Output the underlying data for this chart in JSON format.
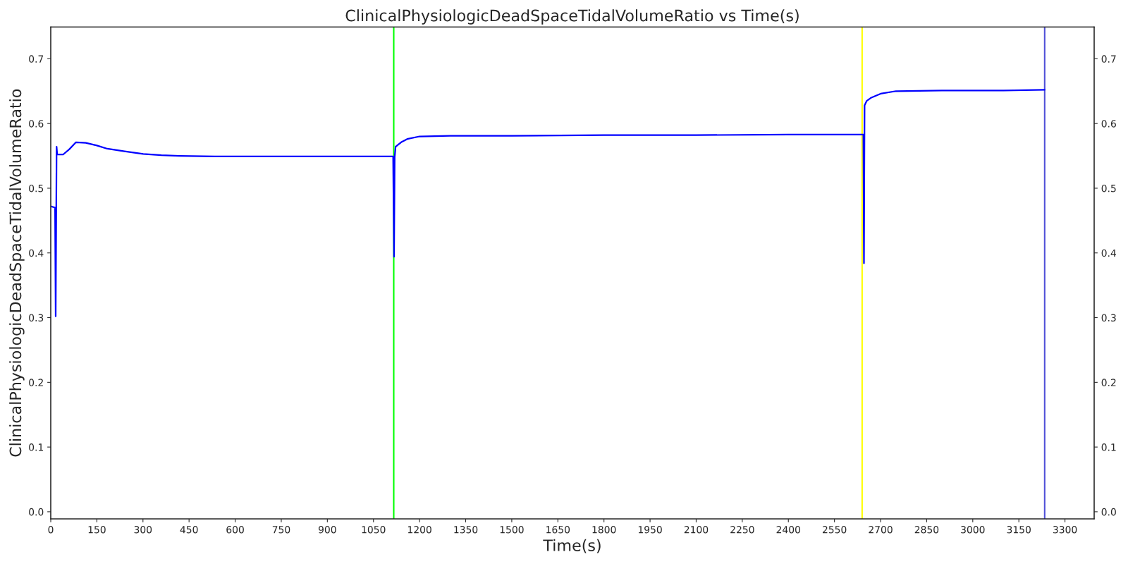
{
  "chart_data": {
    "type": "line",
    "title": "ClinicalPhysiologicDeadSpaceTidalVolumeRatio vs Time(s)",
    "xlabel": "Time(s)",
    "ylabel": "ClinicalPhysiologicDeadSpaceTidalVolumeRatio",
    "series": [
      {
        "color": "#0000ff",
        "x": [
          0,
          14,
          16,
          19,
          21,
          40,
          60,
          82,
          114,
          150,
          184,
          240,
          301,
          360,
          418,
          534,
          700,
          900,
          1113,
          1114,
          1117,
          1119,
          1122,
          1140,
          1160,
          1200,
          1300,
          1500,
          1800,
          2100,
          2400,
          2638,
          2644,
          2646,
          2648,
          2655,
          2670,
          2700,
          2750,
          2900,
          3100,
          3234
        ],
        "values": [
          0.472,
          0.47,
          0.302,
          0.564,
          0.552,
          0.552,
          0.56,
          0.571,
          0.57,
          0.566,
          0.561,
          0.557,
          0.553,
          0.551,
          0.55,
          0.549,
          0.549,
          0.549,
          0.549,
          0.549,
          0.394,
          0.548,
          0.564,
          0.571,
          0.576,
          0.58,
          0.581,
          0.581,
          0.582,
          0.582,
          0.583,
          0.583,
          0.583,
          0.384,
          0.628,
          0.635,
          0.64,
          0.646,
          0.65,
          0.651,
          0.651,
          0.652
        ]
      }
    ],
    "xlim": [
      0,
      3395
    ],
    "xticks": [
      0,
      150,
      300,
      450,
      600,
      750,
      900,
      1050,
      1200,
      1350,
      1500,
      1650,
      1800,
      1950,
      2100,
      2250,
      2400,
      2550,
      2700,
      2850,
      3000,
      3150,
      3300
    ],
    "ylim": [
      -0.011,
      0.749
    ],
    "yticks": [
      {
        "value": 0,
        "label": "0.0"
      },
      0.1,
      0.2,
      0.3,
      0.4,
      0.5,
      0.6,
      0.7
    ],
    "y2lim": [
      -0.011,
      0.749
    ],
    "y2ticks": [
      {
        "value": 0,
        "label": "0.0"
      },
      0.1,
      0.2,
      0.3,
      0.4,
      0.5,
      0.6,
      0.7
    ],
    "ref_lines": [
      {
        "axis": "x",
        "value": 1116,
        "color": "#00ff00"
      },
      {
        "axis": "x",
        "value": 2640,
        "color": "#ffff00"
      },
      {
        "axis": "x",
        "value": 3234,
        "color": "#5050d8"
      }
    ],
    "grid": false,
    "legend": false,
    "marker": "none",
    "line_style": "solid"
  }
}
